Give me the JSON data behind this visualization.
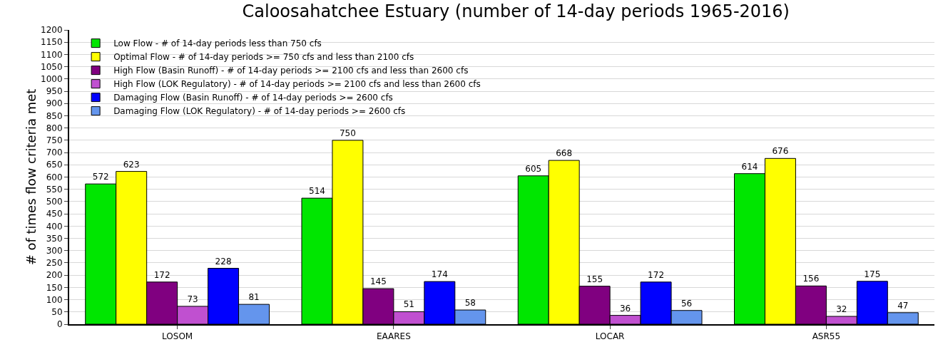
{
  "chart_data": {
    "type": "bar",
    "title": "Caloosahatchee Estuary (number of 14-day periods 1965-2016)",
    "ylabel": "# of times flow criteria met",
    "categories": [
      "LOSOM",
      "EAARES",
      "LOCAR",
      "ASR55"
    ],
    "series": [
      {
        "name": "Low Flow - # of 14-day periods less than 750 cfs",
        "color": "#00e600",
        "values": [
          572,
          514,
          605,
          614
        ]
      },
      {
        "name": "Optimal Flow - # of 14-day periods >= 750 cfs and less than 2100 cfs",
        "color": "#ffff00",
        "values": [
          623,
          750,
          668,
          676
        ]
      },
      {
        "name": "High Flow (Basin Runoff) - # of 14-day periods >= 2100 cfs and less than 2600 cfs",
        "color": "#800080",
        "values": [
          172,
          145,
          155,
          156
        ]
      },
      {
        "name": "High Flow (LOK Regulatory) - # of 14-day periods >= 2100 cfs and less than 2600 cfs",
        "color": "#c050d0",
        "values": [
          73,
          51,
          36,
          32
        ]
      },
      {
        "name": "Damaging Flow (Basin Runoff) - # of 14-day periods >= 2600 cfs",
        "color": "#0000ff",
        "values": [
          228,
          174,
          172,
          175
        ]
      },
      {
        "name": "Damaging Flow (LOK Regulatory) - # of 14-day periods >= 2600 cfs",
        "color": "#6495ed",
        "values": [
          81,
          58,
          56,
          47
        ]
      }
    ],
    "ylim": [
      0,
      1200
    ],
    "yticks": [
      0,
      50,
      100,
      150,
      200,
      250,
      300,
      350,
      400,
      450,
      500,
      550,
      600,
      650,
      700,
      750,
      800,
      850,
      900,
      950,
      1000,
      1050,
      1100,
      1150,
      1200
    ],
    "grid": "y",
    "legend": "top left",
    "data_labels": true
  }
}
